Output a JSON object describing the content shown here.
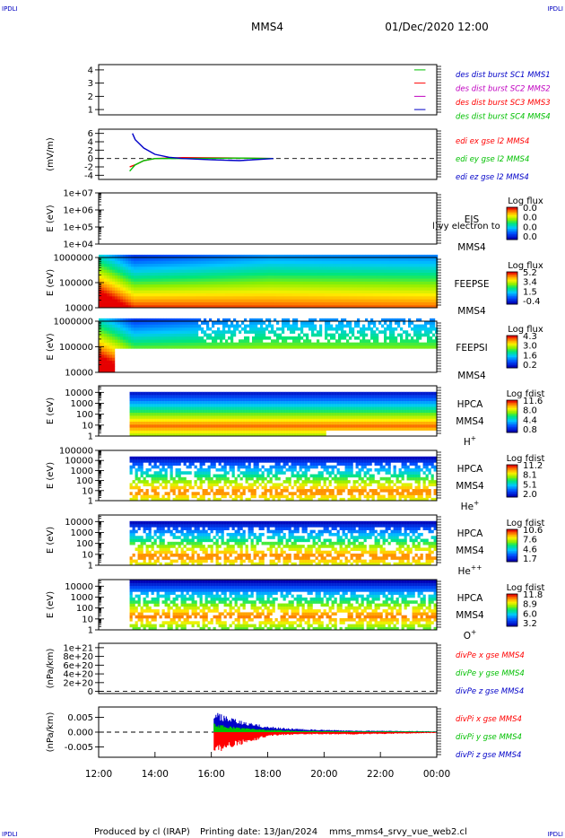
{
  "header": {
    "corner_label": "IPDLI",
    "spacecraft": "MMS4",
    "datetime": "01/Dec/2020 12:00"
  },
  "footer": {
    "produced_by": "Produced by cl (IRAP)",
    "printing_date": "Printing date: 13/Jan/2024",
    "filename": "mms_mms4_srvy_vue_web2.cl"
  },
  "time_axis": {
    "ticks": [
      "12:00",
      "14:00",
      "16:00",
      "18:00",
      "20:00",
      "22:00",
      "00:00"
    ],
    "range_hours": [
      12,
      24
    ]
  },
  "colors": {
    "red": "#ff0000",
    "green": "#00c000",
    "blue": "#0000c8",
    "magenta": "#c000c0",
    "title_blue": "#0000c0"
  },
  "chart_data": [
    {
      "type": "line",
      "panel": "des_dist_burst",
      "yticks": [
        "4",
        "3",
        "2",
        "1"
      ],
      "ylim": [
        0.6,
        4.4
      ],
      "legend": [
        {
          "name": "des dist burst SC1 MMS1",
          "color": "#0000c8"
        },
        {
          "name": "des dist burst SC2 MMS2",
          "color": "#c000c0"
        },
        {
          "name": "des dist burst SC3 MMS3",
          "color": "#ff0000"
        },
        {
          "name": "des dist burst SC4 MMS4",
          "color": "#00c000"
        }
      ],
      "series": [
        {
          "sc": 4,
          "color": "#00c000",
          "x": [
            23.2,
            23.6
          ],
          "y": [
            4,
            4
          ]
        },
        {
          "sc": 3,
          "color": "#ff0000",
          "x": [
            23.2,
            23.6
          ],
          "y": [
            3,
            3
          ]
        },
        {
          "sc": 2,
          "color": "#c000c0",
          "x": [
            23.2,
            23.6
          ],
          "y": [
            2,
            2
          ]
        },
        {
          "sc": 1,
          "color": "#0000c8",
          "x": [
            23.2,
            23.6
          ],
          "y": [
            1,
            1
          ]
        }
      ]
    },
    {
      "type": "line",
      "panel": "edi_E",
      "ylabel": "(mV/m)",
      "yticks": [
        "6",
        "4",
        "2",
        "0",
        "-2",
        "-4"
      ],
      "ylim": [
        -5,
        7
      ],
      "reference_line": 0,
      "legend": [
        {
          "name": "edi ex gse l2 MMS4",
          "color": "#ff0000"
        },
        {
          "name": "edi ey gse l2 MMS4",
          "color": "#00c000"
        },
        {
          "name": "edi ez gse l2 MMS4",
          "color": "#0000c8"
        }
      ],
      "series": [
        {
          "name": "ex",
          "color": "#ff0000",
          "x": [
            13.1,
            13.3,
            13.6,
            14.0,
            15.0,
            17.0,
            18.2
          ],
          "y": [
            -2.0,
            -1.5,
            -0.5,
            0.0,
            0.2,
            0.1,
            0.0
          ]
        },
        {
          "name": "ey",
          "color": "#00c000",
          "x": [
            13.1,
            13.3,
            13.6,
            14.0,
            15.0,
            17.0,
            18.2
          ],
          "y": [
            -3.0,
            -1.5,
            -0.5,
            0.0,
            0.0,
            0.1,
            0.0
          ]
        },
        {
          "name": "ez",
          "color": "#0000c8",
          "x": [
            13.2,
            13.3,
            13.6,
            14.0,
            14.5,
            15.0,
            16.0,
            17.0,
            18.2
          ],
          "y": [
            6.0,
            4.5,
            2.5,
            1.0,
            0.3,
            0.0,
            -0.3,
            -0.5,
            0.0
          ]
        }
      ]
    },
    {
      "type": "heatmap",
      "panel": "EIS",
      "ylabel": "E (eV)",
      "yticks": [
        "1e+07",
        "1e+06",
        "1e+05",
        "1e+04"
      ],
      "ylim": [
        10000,
        10000000
      ],
      "yscale": "log",
      "instrument": "EIS",
      "sc_label": "MMS4",
      "overlay_text": "l)vy electron to",
      "colorbar_title": "Log flux",
      "colorbar_ticks": [
        "0.0",
        "0.0",
        "0.0",
        "0.0"
      ],
      "data": "none"
    },
    {
      "type": "heatmap",
      "panel": "FEEPSE",
      "ylabel": "E (eV)",
      "yticks": [
        "1000000",
        "100000",
        "10000"
      ],
      "ylim": [
        10000,
        1000000
      ],
      "yscale": "log",
      "instrument": "FEEPSE",
      "sc_label": "MMS4",
      "colorbar_title": "Log flux",
      "colorbar_ticks": [
        "5.2",
        "3.4",
        "1.5",
        "-0.4"
      ],
      "coverage": {
        "start": 12.0,
        "end": 24.0,
        "noisy_top_from": 999,
        "low_cut_from": 999
      }
    },
    {
      "type": "heatmap",
      "panel": "FEEPSI",
      "ylabel": "E (eV)",
      "yticks": [
        "1000000",
        "100000",
        "10000"
      ],
      "ylim": [
        10000,
        1000000
      ],
      "yscale": "log",
      "instrument": "FEEPSI",
      "sc_label": "MMS4",
      "colorbar_title": "Log flux",
      "colorbar_ticks": [
        "4.3",
        "3.0",
        "1.6",
        "0.2"
      ],
      "coverage": {
        "start": 12.0,
        "end": 24.0,
        "noisy_top_from": 15.5,
        "low_cut_from": 12.0
      }
    },
    {
      "type": "heatmap",
      "panel": "HPCA_H",
      "ylabel": "E (eV)",
      "yticks": [
        "10000",
        "1000",
        "100",
        "10",
        "1"
      ],
      "ylim": [
        1,
        40000
      ],
      "yscale": "log",
      "instrument": "HPCA",
      "sc_label": "MMS4",
      "species": "H",
      "species_charge": "+",
      "colorbar_title": "Log fdist",
      "colorbar_ticks": [
        "11.6",
        "8.0",
        "4.4",
        "0.8"
      ],
      "coverage": {
        "start": 13.1,
        "end": 24.0
      }
    },
    {
      "type": "heatmap",
      "panel": "HPCA_He",
      "ylabel": "E (eV)",
      "yticks": [
        "100000",
        "10000",
        "1000",
        "100",
        "10",
        "1"
      ],
      "ylim": [
        1,
        100000
      ],
      "yscale": "log",
      "instrument": "HPCA",
      "sc_label": "MMS4",
      "species": "He",
      "species_charge": "+",
      "colorbar_title": "Log fdist",
      "colorbar_ticks": [
        "11.2",
        "8.1",
        "5.1",
        "2.0"
      ],
      "coverage": {
        "start": 13.1,
        "end": 24.0
      }
    },
    {
      "type": "heatmap",
      "panel": "HPCA_He2",
      "ylabel": "E (eV)",
      "yticks": [
        "10000",
        "1000",
        "100",
        "10",
        "1"
      ],
      "ylim": [
        1,
        40000
      ],
      "yscale": "log",
      "instrument": "HPCA",
      "sc_label": "MMS4",
      "species": "He",
      "species_charge": "++",
      "colorbar_title": "Log fdist",
      "colorbar_ticks": [
        "10.6",
        "7.6",
        "4.6",
        "1.7"
      ],
      "coverage": {
        "start": 13.1,
        "end": 24.0
      }
    },
    {
      "type": "heatmap",
      "panel": "HPCA_O",
      "ylabel": "E (eV)",
      "yticks": [
        "10000",
        "1000",
        "100",
        "10",
        "1"
      ],
      "ylim": [
        1,
        40000
      ],
      "yscale": "log",
      "instrument": "HPCA",
      "sc_label": "MMS4",
      "species": "O",
      "species_charge": "+",
      "colorbar_title": "Log fdist",
      "colorbar_ticks": [
        "11.8",
        "8.9",
        "6.0",
        "3.2"
      ],
      "coverage": {
        "start": 13.1,
        "end": 24.0
      }
    },
    {
      "type": "line",
      "panel": "divPe",
      "ylabel": "(nPa/km)",
      "yticks": [
        "1e+21",
        "8e+20",
        "6e+20",
        "4e+20",
        "2e+20",
        "0"
      ],
      "ylim": [
        -5e+19,
        1.1e+21
      ],
      "reference_line": 0,
      "legend": [
        {
          "name": "divPe x gse MMS4",
          "color": "#ff0000"
        },
        {
          "name": "divPe y gse MMS4",
          "color": "#00c000"
        },
        {
          "name": "divPe z gse MMS4",
          "color": "#0000c8"
        }
      ],
      "series": []
    },
    {
      "type": "area",
      "panel": "divPi",
      "ylabel": "(nPa/km)",
      "yticks": [
        "0.005",
        "0.000",
        "-0.005"
      ],
      "ylim": [
        -0.0085,
        0.0085
      ],
      "reference_line": 0,
      "legend": [
        {
          "name": "divPi x gse MMS4",
          "color": "#ff0000"
        },
        {
          "name": "divPi y gse MMS4",
          "color": "#00c000"
        },
        {
          "name": "divPi z gse MMS4",
          "color": "#0000c8"
        }
      ],
      "series": [
        {
          "name": "z",
          "color": "#0000c8",
          "x": [
            16.1,
            16.5,
            17.0,
            18.0,
            19.0,
            20.0,
            21.0,
            22.0,
            23.0,
            24.0
          ],
          "y": [
            0.007,
            0.0055,
            0.004,
            0.002,
            0.0012,
            0.0008,
            0.0006,
            0.0005,
            0.0004,
            0.0003
          ]
        },
        {
          "name": "y",
          "color": "#00c000",
          "x": [
            16.1,
            16.5,
            17.0,
            18.0,
            19.0,
            20.0,
            21.0,
            22.0,
            23.0,
            24.0
          ],
          "y": [
            0.003,
            0.0022,
            0.0016,
            0.0009,
            0.0005,
            0.0004,
            0.0003,
            0.0003,
            0.0003,
            0.0002
          ]
        },
        {
          "name": "x",
          "color": "#ff0000",
          "x": [
            16.1,
            16.5,
            17.0,
            18.0,
            19.0,
            20.0,
            21.0,
            22.0,
            23.0,
            24.0
          ],
          "y": [
            -0.0075,
            -0.006,
            -0.0045,
            -0.0015,
            -0.0008,
            -0.0008,
            -0.0008,
            -0.0007,
            -0.0005,
            -0.0003
          ]
        }
      ]
    }
  ]
}
